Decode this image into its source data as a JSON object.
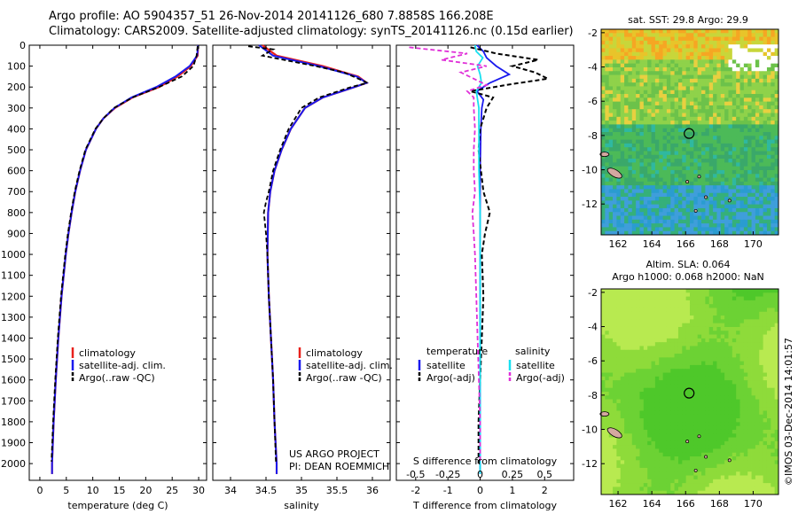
{
  "header": {
    "line1": "Argo profile: AO 5904357_51 26-Nov-2014 20141126_680 7.8858S 166.208E",
    "line2": "Climatology: CARS2009. Satellite-adjusted climatology: synTS_20141126.nc (0.15d earlier)"
  },
  "depth_ticks": [
    "0",
    "100",
    "200",
    "300",
    "400",
    "500",
    "600",
    "700",
    "800",
    "900",
    "1000",
    "1100",
    "1200",
    "1300",
    "1400",
    "1500",
    "1600",
    "1700",
    "1800",
    "1900",
    "2000"
  ],
  "colors": {
    "climatology": "#e8201c",
    "satellite": "#1a1aee",
    "argo": "#000000",
    "sal_satellite": "#18e0f0",
    "sal_argo": "#e030d8"
  },
  "credit": "©IMOS 03-Dec-2014 14:01:57",
  "project_note": {
    "line1": "US ARGO PROJECT",
    "line2": "PI: DEAN ROEMMICH"
  },
  "chart_data": [
    {
      "type": "line",
      "xlabel": "temperature (deg C)",
      "xlim": [
        -2,
        31.5
      ],
      "xticks": [
        "0",
        "5",
        "10",
        "15",
        "20",
        "25",
        "30"
      ],
      "ylim": [
        0,
        2080
      ],
      "legend": [
        "climatology",
        "satellite-adj. clim.",
        "Argo(..raw -QC)"
      ],
      "series": [
        {
          "name": "climatology",
          "depth": [
            0,
            50,
            100,
            150,
            200,
            250,
            300,
            350,
            400,
            500,
            600,
            700,
            800,
            900,
            1000,
            1200,
            1400,
            1600,
            1800,
            2000,
            2050
          ],
          "values": [
            29.9,
            29.8,
            28.5,
            26,
            22.5,
            17.5,
            14.2,
            12,
            10.6,
            8.7,
            7.6,
            6.7,
            6,
            5.4,
            4.9,
            4.1,
            3.5,
            3,
            2.6,
            2.3,
            2.3
          ]
        },
        {
          "name": "satellite-adj. clim.",
          "depth": [
            0,
            50,
            100,
            150,
            200,
            250,
            300,
            350,
            400,
            500,
            600,
            700,
            800,
            900,
            1000,
            1200,
            1400,
            1600,
            1800,
            2000,
            2050
          ],
          "values": [
            29.9,
            29.7,
            28.3,
            25.6,
            22,
            17.3,
            14.1,
            12,
            10.6,
            8.7,
            7.6,
            6.7,
            6,
            5.4,
            4.9,
            4.1,
            3.5,
            3,
            2.6,
            2.3,
            2.3
          ]
        },
        {
          "name": "Argo(..raw -QC)",
          "depth": [
            5,
            50,
            100,
            150,
            200,
            250,
            300,
            350,
            400,
            500,
            600,
            700,
            800,
            900,
            1000,
            1200,
            1400,
            1600,
            1800,
            1990
          ],
          "values": [
            29.8,
            29.6,
            29,
            26.8,
            22.5,
            17.5,
            14,
            12,
            10.5,
            8.6,
            7.5,
            6.6,
            5.9,
            5.3,
            4.8,
            4.0,
            3.4,
            2.9,
            2.5,
            2.2
          ]
        }
      ]
    },
    {
      "type": "line",
      "xlabel": "salinity",
      "xlim": [
        33.75,
        36.25
      ],
      "xticks": [
        "34",
        "34.5",
        "35",
        "35.5",
        "36"
      ],
      "ylim": [
        0,
        2080
      ],
      "legend": [
        "climatology",
        "satellite-adj. clim.",
        "Argo(..raw -QC)"
      ],
      "series": [
        {
          "name": "climatology",
          "depth": [
            0,
            50,
            100,
            150,
            180,
            200,
            250,
            300,
            400,
            500,
            600,
            700,
            800,
            1000,
            1200,
            1400,
            1600,
            1800,
            2000,
            2050
          ],
          "values": [
            34.45,
            34.65,
            35.3,
            35.8,
            35.92,
            35.75,
            35.3,
            35.05,
            34.85,
            34.72,
            34.62,
            34.56,
            34.53,
            34.52,
            34.54,
            34.57,
            34.6,
            34.62,
            34.65,
            34.65
          ]
        },
        {
          "name": "satellite-adj. clim.",
          "depth": [
            0,
            50,
            100,
            150,
            180,
            200,
            250,
            300,
            400,
            500,
            600,
            700,
            800,
            1000,
            1200,
            1400,
            1600,
            1800,
            2000,
            2050
          ],
          "values": [
            34.4,
            34.6,
            35.25,
            35.78,
            35.92,
            35.75,
            35.3,
            35.05,
            34.85,
            34.72,
            34.62,
            34.56,
            34.53,
            34.52,
            34.54,
            34.57,
            34.6,
            34.62,
            34.65,
            34.65
          ]
        },
        {
          "name": "Argo(..raw -QC)",
          "depth": [
            5,
            20,
            50,
            100,
            130,
            160,
            180,
            200,
            250,
            300,
            400,
            500,
            600,
            700,
            750,
            800,
            900,
            1000,
            1200,
            1400,
            1600,
            1800,
            1990
          ],
          "values": [
            34.25,
            34.6,
            34.45,
            35.2,
            35.6,
            35.8,
            35.93,
            35.7,
            35.25,
            35.0,
            34.82,
            34.7,
            34.6,
            34.54,
            34.5,
            34.47,
            34.5,
            34.52,
            34.54,
            34.57,
            34.6,
            34.62,
            34.64
          ]
        }
      ]
    },
    {
      "type": "line",
      "xlabel": "T difference from climatology",
      "xlabel_top": "S difference from climatology",
      "xlim": [
        -2.6,
        2.9
      ],
      "xticks": [
        "-2",
        "-1",
        "0",
        "1",
        "2"
      ],
      "xticks_top": [
        "-0.5",
        "-0.25",
        "0",
        "0.25",
        "0.5"
      ],
      "ylim": [
        0,
        2080
      ],
      "legend_temperature_title": "temperature",
      "legend_salinity_title": "salinity",
      "legend": [
        "satellite",
        "Argo(-adj)",
        "satellite",
        "Argo(-adj)"
      ],
      "series": [
        {
          "name": "temperature satellite",
          "depth": [
            0,
            30,
            60,
            100,
            140,
            180,
            220,
            260,
            300,
            400,
            600,
            800,
            1000,
            1400,
            1800,
            2050
          ],
          "values": [
            -0.1,
            0.1,
            0.2,
            0.5,
            0.9,
            0.3,
            -0.1,
            0.1,
            0.05,
            0.02,
            0.0,
            0.0,
            0.0,
            0.0,
            0.0,
            0.0
          ]
        },
        {
          "name": "temperature Argo(-adj)",
          "depth": [
            10,
            40,
            70,
            100,
            130,
            160,
            190,
            220,
            250,
            300,
            350,
            400,
            500,
            700,
            800,
            900,
            1000,
            1200,
            1400,
            1600,
            1800,
            2000
          ],
          "values": [
            -0.3,
            0.5,
            1.8,
            1.0,
            1.7,
            2.1,
            0.8,
            -0.3,
            0.4,
            0.2,
            0.1,
            0.0,
            -0.05,
            0.1,
            0.3,
            0.15,
            0.05,
            0.1,
            0.05,
            0.0,
            -0.05,
            -0.05
          ]
        },
        {
          "name": "salinity satellite",
          "depth": [
            0,
            30,
            60,
            100,
            140,
            180,
            220,
            260,
            300,
            400,
            600,
            800,
            1000,
            1400,
            1800,
            2050
          ],
          "values": [
            -0.04,
            -0.03,
            0.02,
            -0.02,
            0.0,
            0.01,
            -0.03,
            -0.02,
            -0.01,
            -0.01,
            -0.01,
            0.0,
            0.0,
            0.0,
            0.0,
            0.0
          ]
        },
        {
          "name": "salinity Argo(-adj)",
          "depth": [
            10,
            40,
            70,
            100,
            130,
            160,
            190,
            220,
            250,
            300,
            400,
            500,
            600,
            700,
            800,
            900,
            1000,
            1200,
            1400,
            1600,
            1800,
            2000
          ],
          "values": [
            -0.55,
            -0.1,
            -0.3,
            0.05,
            -0.15,
            -0.05,
            0.05,
            -0.1,
            -0.05,
            -0.05,
            -0.04,
            -0.05,
            -0.05,
            -0.04,
            -0.06,
            -0.05,
            -0.04,
            -0.03,
            -0.02,
            -0.01,
            0.0,
            0.0
          ]
        }
      ]
    },
    {
      "type": "heatmap",
      "title": "sat. SST: 29.8 Argo: 29.9",
      "xlim": [
        161,
        171.5
      ],
      "ylim": [
        -13.8,
        -1.8
      ],
      "xticks": [
        "162",
        "164",
        "166",
        "168",
        "170"
      ],
      "yticks": [
        "-2",
        "-4",
        "-6",
        "-8",
        "-10",
        "-12"
      ],
      "argo_position": {
        "lon": 166.208,
        "lat": -7.8858
      }
    },
    {
      "type": "heatmap",
      "title": "Altim. SLA: 0.064",
      "subtitle": "Argo h1000: 0.068 h2000: NaN",
      "xlim": [
        161,
        171.5
      ],
      "ylim": [
        -13.8,
        -1.8
      ],
      "xticks": [
        "162",
        "164",
        "166",
        "168",
        "170"
      ],
      "yticks": [
        "-2",
        "-4",
        "-6",
        "-8",
        "-10",
        "-12"
      ],
      "argo_position": {
        "lon": 166.208,
        "lat": -7.8858
      }
    }
  ]
}
